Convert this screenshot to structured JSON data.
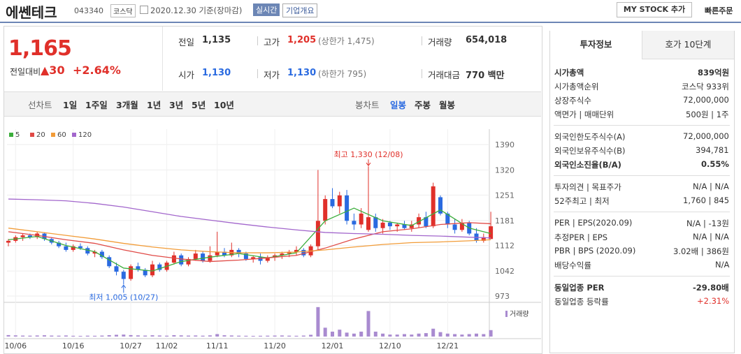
{
  "header": {
    "name": "에쎈테크",
    "code": "043340",
    "market": "코스닥",
    "date": "2020.12.30 기준(장마감)",
    "realtime": "실시간",
    "company_info": "기업개요",
    "my_stock": "MY STOCK 추가",
    "quick_order": "빠른주문"
  },
  "price": {
    "current": "1,165",
    "change_label": "전일대비",
    "change": "▲30",
    "rate": "+2.64%"
  },
  "summary": [
    {
      "label": "전일",
      "value": "1,135"
    },
    {
      "label": "고가",
      "value": "1,205",
      "note": "(상한가 1,475)"
    },
    {
      "label": "거래량",
      "value": "654,018"
    },
    {
      "label": "시가",
      "value": "1,130"
    },
    {
      "label": "저가",
      "value": "1,130",
      "note": "(하한가 795)"
    },
    {
      "label": "거래대금",
      "value": "770 백만"
    }
  ],
  "periods": {
    "label": "선차트",
    "items": [
      "1일",
      "1주일",
      "3개월",
      "1년",
      "3년",
      "5년",
      "10년"
    ]
  },
  "candle_periods": {
    "label": "봉차트",
    "items": [
      "일봉",
      "주봉",
      "월봉"
    ]
  },
  "chart_data": {
    "type": "candlestick",
    "open": [
      1120,
      1125,
      1135,
      1140,
      1135,
      1145,
      1130,
      1120,
      1110,
      1100,
      1110,
      1105,
      1090,
      1095,
      1080,
      1055,
      1040,
      1020,
      1055,
      1045,
      1030,
      1060,
      1045,
      1065,
      1085,
      1060,
      1075,
      1090,
      1070,
      1085,
      1095,
      1085,
      1100,
      1090,
      1075,
      1080,
      1070,
      1080,
      1085,
      1090,
      1095,
      1100,
      1085,
      1110,
      1180,
      1240,
      1220,
      1250,
      1180,
      1170,
      1155,
      1190,
      1160,
      1175,
      1165,
      1170,
      1160,
      1170,
      1190,
      1165,
      1245,
      1200,
      1170,
      1155,
      1175,
      1145,
      1125,
      1130
    ],
    "high": [
      1130,
      1140,
      1145,
      1145,
      1150,
      1148,
      1135,
      1125,
      1120,
      1115,
      1118,
      1110,
      1100,
      1100,
      1085,
      1065,
      1045,
      1060,
      1065,
      1050,
      1070,
      1065,
      1070,
      1095,
      1090,
      1080,
      1100,
      1095,
      1110,
      1150,
      1105,
      1120,
      1105,
      1095,
      1085,
      1090,
      1085,
      1090,
      1095,
      1100,
      1110,
      1105,
      1115,
      1320,
      1250,
      1270,
      1260,
      1265,
      1200,
      1215,
      1330,
      1200,
      1185,
      1180,
      1175,
      1180,
      1180,
      1200,
      1205,
      1285,
      1250,
      1205,
      1185,
      1185,
      1180,
      1160,
      1145,
      1205
    ],
    "low": [
      1110,
      1120,
      1125,
      1130,
      1130,
      1125,
      1115,
      1105,
      1095,
      1095,
      1100,
      1085,
      1080,
      1075,
      1050,
      1030,
      1005,
      1015,
      1040,
      1025,
      1025,
      1040,
      1040,
      1060,
      1055,
      1055,
      1070,
      1065,
      1065,
      1080,
      1080,
      1080,
      1080,
      1070,
      1065,
      1060,
      1065,
      1070,
      1075,
      1080,
      1085,
      1080,
      1080,
      1100,
      1170,
      1215,
      1200,
      1170,
      1155,
      1160,
      1150,
      1150,
      1145,
      1155,
      1150,
      1155,
      1150,
      1160,
      1160,
      1160,
      1195,
      1160,
      1145,
      1150,
      1140,
      1120,
      1120,
      1130
    ],
    "close": [
      1125,
      1135,
      1140,
      1135,
      1145,
      1130,
      1120,
      1110,
      1100,
      1110,
      1105,
      1090,
      1095,
      1080,
      1055,
      1040,
      1020,
      1055,
      1045,
      1030,
      1060,
      1045,
      1065,
      1085,
      1060,
      1075,
      1090,
      1070,
      1085,
      1095,
      1085,
      1100,
      1090,
      1075,
      1080,
      1070,
      1080,
      1085,
      1090,
      1095,
      1100,
      1085,
      1110,
      1180,
      1240,
      1220,
      1250,
      1180,
      1170,
      1200,
      1190,
      1160,
      1175,
      1165,
      1170,
      1160,
      1170,
      1190,
      1165,
      1275,
      1200,
      1170,
      1155,
      1175,
      1145,
      1125,
      1135,
      1165
    ],
    "volume": [
      150000,
      120000,
      100000,
      90000,
      110000,
      130000,
      100000,
      90000,
      110000,
      80000,
      70000,
      90000,
      80000,
      100000,
      140000,
      180000,
      200000,
      150000,
      120000,
      100000,
      130000,
      110000,
      90000,
      140000,
      120000,
      100000,
      110000,
      90000,
      120000,
      250000,
      130000,
      110000,
      90000,
      80000,
      70000,
      80000,
      90000,
      100000,
      110000,
      90000,
      80000,
      100000,
      180000,
      3000000,
      900000,
      500000,
      700000,
      400000,
      300000,
      500000,
      2600000,
      500000,
      300000,
      200000,
      200000,
      250000,
      200000,
      300000,
      350000,
      800000,
      450000,
      300000,
      250000,
      200000,
      250000,
      300000,
      250000,
      654018
    ],
    "volume_ylim": [
      0,
      3200000
    ],
    "volume_label": "거래량",
    "ylim": [
      973,
      1390
    ],
    "yticks": [
      1390,
      1320,
      1251,
      1181,
      1112,
      1042,
      973
    ],
    "xticks": [
      {
        "value": 1,
        "label": "10/06"
      },
      {
        "value": 9,
        "label": "10/16"
      },
      {
        "value": 17,
        "label": "10/27"
      },
      {
        "value": 22,
        "label": "11/02"
      },
      {
        "value": 29,
        "label": "11/11"
      },
      {
        "value": 37,
        "label": "11/20"
      },
      {
        "value": 45,
        "label": "12/01"
      },
      {
        "value": 53,
        "label": "12/10"
      },
      {
        "value": 61,
        "label": "12/21"
      }
    ],
    "up_color": "#e0302a",
    "down_color": "#2a6ae0",
    "series": [
      {
        "name": "5",
        "color": "#3cae3c",
        "x": [
          0,
          4,
          8,
          12,
          16,
          20,
          24,
          28,
          32,
          36,
          40,
          44,
          48,
          52,
          56,
          60,
          64,
          67
        ],
        "values": [
          1128,
          1137,
          1112,
          1095,
          1050,
          1042,
          1068,
          1080,
          1090,
          1078,
          1092,
          1180,
          1215,
          1180,
          1167,
          1210,
          1160,
          1145
        ]
      },
      {
        "name": "20",
        "color": "#e04a46",
        "x": [
          0,
          4,
          8,
          12,
          16,
          20,
          24,
          28,
          32,
          36,
          40,
          44,
          48,
          52,
          56,
          60,
          64,
          67
        ],
        "values": [
          1150,
          1140,
          1128,
          1118,
          1100,
          1085,
          1075,
          1068,
          1072,
          1078,
          1085,
          1105,
          1130,
          1150,
          1158,
          1170,
          1175,
          1172
        ]
      },
      {
        "name": "60",
        "color": "#f29c38",
        "x": [
          0,
          4,
          8,
          12,
          16,
          20,
          24,
          28,
          32,
          36,
          40,
          44,
          48,
          52,
          56,
          60,
          64,
          67
        ],
        "values": [
          1160,
          1150,
          1140,
          1130,
          1118,
          1108,
          1100,
          1095,
          1092,
          1092,
          1094,
          1100,
          1108,
          1115,
          1120,
          1122,
          1125,
          1128
        ]
      },
      {
        "name": "120",
        "color": "#a266cc",
        "x": [
          0,
          4,
          8,
          12,
          16,
          20,
          24,
          28,
          32,
          36,
          40,
          44,
          48,
          52,
          56,
          60,
          64,
          67
        ],
        "values": [
          1240,
          1238,
          1235,
          1228,
          1218,
          1205,
          1192,
          1182,
          1172,
          1163,
          1155,
          1148,
          1145,
          1143,
          1140,
          1138,
          1135,
          1133
        ]
      }
    ],
    "annotations": [
      {
        "text": "최고 1,330 (12/08)",
        "x": 50,
        "value": 1330
      },
      {
        "text": "최저 1,005 (10/27)",
        "x": 16,
        "value": 1005
      }
    ]
  },
  "tabs": [
    "투자정보",
    "호가 10단계"
  ],
  "info": [
    [
      {
        "label": "시가총액",
        "value": "839억원"
      },
      {
        "label": "시가총액순위",
        "value": "코스닥 933위"
      },
      {
        "label": "상장주식수",
        "value": "72,000,000"
      },
      {
        "label": "액면가 | 매매단위",
        "value": "500원 | 1주"
      }
    ],
    [
      {
        "label": "외국인한도주식수(A)",
        "value": "72,000,000"
      },
      {
        "label": "외국인보유주식수(B)",
        "value": "394,781"
      },
      {
        "label": "외국인소진율(B/A)",
        "value": "0.55%"
      }
    ],
    [
      {
        "label": "투자의견 | 목표주가",
        "value": "N/A | N/A"
      },
      {
        "label": "52주최고 | 최저",
        "value": "1,760 | 845"
      }
    ],
    [
      {
        "label": "PER | EPS(2020.09)",
        "value": "N/A | -13원"
      },
      {
        "label": "추정PER | EPS",
        "value": "N/A | N/A"
      },
      {
        "label": "PBR | BPS (2020.09)",
        "value": "3.02배 | 386원"
      },
      {
        "label": "배당수익률",
        "value": "N/A"
      }
    ],
    [
      {
        "label": "동일업종 PER",
        "value": "-29.80배"
      },
      {
        "label": "동일업종 등락률",
        "value": "+2.31%"
      }
    ]
  ]
}
